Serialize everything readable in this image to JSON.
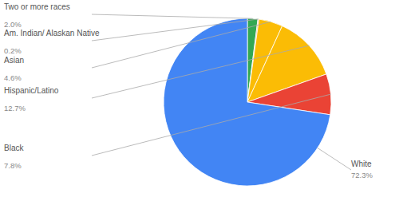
{
  "chart_data": {
    "type": "pie",
    "categories": [
      "Two or more races",
      "Am. Indian/ Alaskan Native",
      "Asian",
      "Hispanic/Latino",
      "Black",
      "White"
    ],
    "values": [
      2.0,
      0.2,
      4.6,
      12.7,
      7.8,
      72.3
    ],
    "value_labels": [
      "2.0%",
      "0.2%",
      "4.6%",
      "12.7%",
      "7.8%",
      "72.3%"
    ],
    "colors": [
      "#34A853",
      "#E8967A",
      "#FBBC05",
      "#FBBC05",
      "#EA4335",
      "#4285F4"
    ]
  }
}
